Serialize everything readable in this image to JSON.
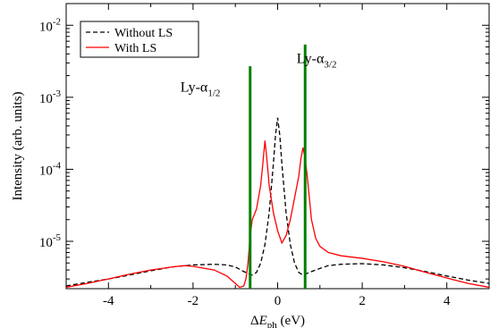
{
  "chart_data": {
    "type": "line",
    "xlabel": "ΔE_ph (eV)",
    "xlabel_parts": {
      "delta": "Δ",
      "var": "E",
      "sub": "ph",
      "unit": " (eV)"
    },
    "ylabel": "Intensity (arb. units)",
    "xlim": [
      -5,
      5
    ],
    "ylim": [
      2.2e-06,
      0.02
    ],
    "y_scale": "log",
    "x_ticks": [
      -4,
      -2,
      0,
      2,
      4
    ],
    "x_tick_labels": [
      "-4",
      "-2",
      "0",
      "2",
      "4"
    ],
    "y_ticks": [
      {
        "value": 1e-05,
        "base": "10",
        "exp": "-5"
      },
      {
        "value": 0.0001,
        "base": "10",
        "exp": "-4"
      },
      {
        "value": 0.001,
        "base": "10",
        "exp": "-3"
      },
      {
        "value": 0.01,
        "base": "10",
        "exp": "-2"
      }
    ],
    "legend": {
      "position": "top-left",
      "entries": [
        {
          "label": "Without LS",
          "style": "dashed",
          "color": "#000000"
        },
        {
          "label": "With LS",
          "style": "solid",
          "color": "#ff0000"
        }
      ]
    },
    "series": [
      {
        "name": "Without LS",
        "color": "#000000",
        "dash": true,
        "x": [
          -5,
          -4.5,
          -4,
          -3.5,
          -3,
          -2.5,
          -2,
          -1.5,
          -1.2,
          -1.0,
          -0.8,
          -0.6,
          -0.5,
          -0.4,
          -0.3,
          -0.2,
          -0.1,
          -0.05,
          0,
          0.05,
          0.1,
          0.2,
          0.3,
          0.4,
          0.5,
          0.6,
          0.8,
          1.0,
          1.2,
          1.5,
          2,
          2.5,
          3,
          3.5,
          4,
          4.5,
          5
        ],
        "y": [
          2.4e-06,
          2.7e-06,
          3e-06,
          3.4e-06,
          3.9e-06,
          4.4e-06,
          4.7e-06,
          4.8e-06,
          4.7e-06,
          4.4e-06,
          3.8e-06,
          3.4e-06,
          3.7e-06,
          5e-06,
          9e-06,
          2.5e-05,
          0.00012,
          0.0003,
          0.00052,
          0.0003,
          0.00012,
          2.5e-05,
          9e-06,
          5e-06,
          3.7e-06,
          3.4e-06,
          3.8e-06,
          4.2e-06,
          4.6e-06,
          4.8e-06,
          4.9e-06,
          4.7e-06,
          4.3e-06,
          3.8e-06,
          3.3e-06,
          2.9e-06,
          2.6e-06
        ]
      },
      {
        "name": "With LS",
        "color": "#ff0000",
        "dash": false,
        "x": [
          -5,
          -4.5,
          -4,
          -3.5,
          -3,
          -2.5,
          -2.2,
          -2,
          -1.5,
          -1.2,
          -1.0,
          -0.9,
          -0.8,
          -0.75,
          -0.7,
          -0.65,
          -0.6,
          -0.5,
          -0.4,
          -0.35,
          -0.3,
          -0.25,
          -0.2,
          -0.1,
          0,
          0.1,
          0.2,
          0.3,
          0.4,
          0.5,
          0.55,
          0.6,
          0.65,
          0.7,
          0.75,
          0.8,
          0.9,
          1.0,
          1.2,
          1.5,
          2,
          2.5,
          3,
          3.5,
          4,
          4.5,
          5
        ],
        "y": [
          2.3e-06,
          2.6e-06,
          3e-06,
          3.5e-06,
          4e-06,
          4.4e-06,
          4.6e-06,
          4.5e-06,
          4e-06,
          3.3e-06,
          2.6e-06,
          2.3e-06,
          2.4e-06,
          3e-06,
          5e-06,
          1.2e-05,
          2e-05,
          2.8e-05,
          6e-05,
          0.00012,
          0.00025,
          0.00013,
          6e-05,
          2.5e-05,
          1.4e-05,
          9.5e-06,
          1.2e-05,
          2e-05,
          4e-05,
          8e-05,
          0.00014,
          0.0002,
          0.00014,
          8e-05,
          4e-05,
          2e-05,
          1.1e-05,
          8.5e-06,
          7e-06,
          6.3e-06,
          5.8e-06,
          5.2e-06,
          4.5e-06,
          3.7e-06,
          3.1e-06,
          2.6e-06,
          2.3e-06
        ]
      }
    ],
    "vertical_lines": [
      {
        "name": "Ly-α1/2 line",
        "x": -0.65,
        "y_top": 0.0027,
        "color": "#008000"
      },
      {
        "name": "Ly-α3/2 line",
        "x": 0.65,
        "y_top": 0.0054,
        "color": "#008000"
      }
    ],
    "annotations": [
      {
        "id": "ly12",
        "text": "Ly-",
        "greek": "α",
        "sub": "1/2",
        "x": -2.3,
        "y": 0.0012
      },
      {
        "id": "ly32",
        "text": "Ly-",
        "greek": "α",
        "sub": "3/2",
        "x": 0.45,
        "y": 0.003
      }
    ]
  }
}
